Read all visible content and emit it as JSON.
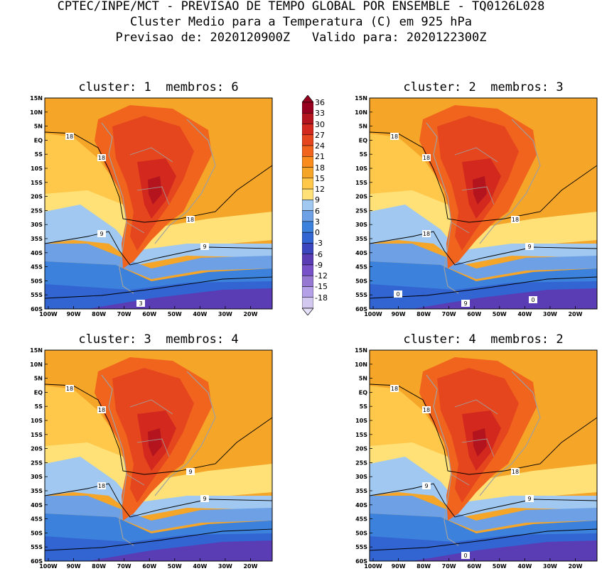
{
  "header": {
    "line1": "CPTEC/INPE/MCT - PREVISAO DE TEMPO GLOBAL POR ENSEMBLE - TQ0126L028",
    "line2": "Cluster Medio para a Temperatura (C) em 925 hPa",
    "line3": "Previsao de: 2020120900Z   Valido para: 2020122300Z"
  },
  "lat_labels": [
    "15N",
    "10N",
    "5N",
    "EQ",
    "5S",
    "10S",
    "15S",
    "20S",
    "25S",
    "30S",
    "35S",
    "40S",
    "45S",
    "50S",
    "55S",
    "60S"
  ],
  "lon_labels": [
    "100W",
    "90W",
    "80W",
    "70W",
    "60W",
    "50W",
    "40W",
    "30W",
    "20W"
  ],
  "colorbar": {
    "levels": [
      "36",
      "33",
      "30",
      "27",
      "24",
      "21",
      "18",
      "15",
      "12",
      "9",
      "6",
      "3",
      "0",
      "-3",
      "-6",
      "-9",
      "-12",
      "-15",
      "-18"
    ],
    "colors": [
      "#96001e",
      "#b4141e",
      "#d2281e",
      "#e6461e",
      "#f0641e",
      "#fa8c1e",
      "#f5a528",
      "#ffc84b",
      "#ffe178",
      "#a0c8f0",
      "#6ea0e6",
      "#3c82dc",
      "#3264d2",
      "#3c46be",
      "#5a3cb4",
      "#7850c8",
      "#9678d2",
      "#b4a0e6",
      "#d2c8f0"
    ]
  },
  "palette": {
    "ocean_warm": "#f5a528",
    "land_hot": "#f0641e",
    "land_hotter": "#e6461e",
    "land_core": "#d2281e",
    "land_peak": "#b4141e",
    "yellow_band": "#ffe178",
    "light_yellow": "#ffc84b",
    "blue_light": "#a0c8f0",
    "blue_mid": "#6ea0e6",
    "blue_deep": "#3c82dc",
    "blue_deeper": "#3264d2",
    "purple": "#5a3cb4",
    "border_gray": "#a0a0a0"
  },
  "panels": [
    {
      "title": "cluster: 1  membros: 6",
      "contour_labels": [
        "18",
        "18",
        "18",
        "9",
        "9",
        "3"
      ]
    },
    {
      "title": "cluster: 2  membros: 3",
      "contour_labels": [
        "18",
        "18",
        "18",
        "18",
        "9",
        "9",
        "0",
        "0"
      ]
    },
    {
      "title": "cluster: 3  membros: 4",
      "contour_labels": [
        "18",
        "18",
        "9",
        "18",
        "9"
      ]
    },
    {
      "title": "cluster: 4  membros: 2",
      "contour_labels": [
        "18",
        "18",
        "18",
        "9",
        "9",
        "0"
      ]
    }
  ]
}
